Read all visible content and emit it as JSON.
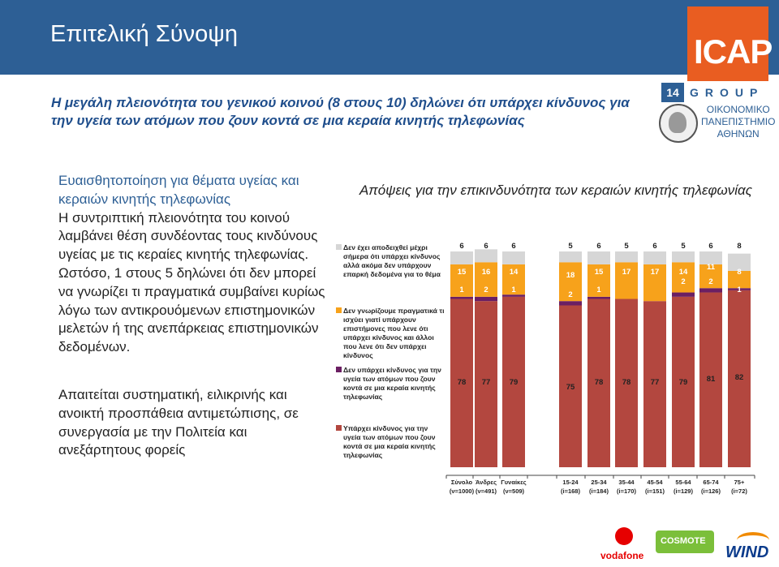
{
  "header": {
    "title": "Επιτελική Σύνοψη",
    "page_number": "14"
  },
  "logo": {
    "brand": "ICAP",
    "group": "GROUP",
    "university": [
      "ΟΙΚΟΝΟΜΙΚΟ",
      "ΠΑΝΕΠΙΣΤΗΜΙΟ",
      "ΑΘΗΝΩΝ"
    ]
  },
  "subtitle": "Η μεγάλη πλειονότητα του γενικού κοινού (8 στους 10) δηλώνει ότι υπάρχει κίνδυνος για την υγεία των ατόμων που ζουν κοντά σε μια κεραία κινητής τηλεφωνίας",
  "left_text": {
    "p1_blue": "Ευαισθητοποίηση για θέματα υγείας και κεραιών κινητής τηλεφωνίας",
    "p1_rest": "Η συντριπτική πλειονότητα του κοινού λαμβάνει θέση συνδέοντας τους κινδύνους υγείας με τις κεραίες κινητής τηλεφωνίας. Ωστόσο, 1 στους 5 δηλώνει ότι δεν μπορεί να γνωρίζει τι πραγματικά συμβαίνει κυρίως λόγω των αντικρουόμενων επιστημονικών μελετών ή της ανεπάρκειας επιστημονικών δεδομένων.",
    "p2": "Απαιτείται συστηματική, ειλικρινής και ανοικτή προσπάθεια αντιμετώπισης, σε συνεργασία με την Πολιτεία και ανεξάρτητους φορείς"
  },
  "footer": {
    "vodafone": "vodafone",
    "cosmote": "COSMOTE",
    "wind": "WIND"
  },
  "chart_data": {
    "type": "bar",
    "stacked": true,
    "title": "Απόψεις για την επικινδυνότητα των κεραιών κινητής τηλεφωνίας",
    "categories": [
      "Σύνολο\n(ν=1000)",
      "Άνδρες\n(ν=491)",
      "Γυναίκες\n(ν=509)",
      "15-24\n(ί=168)",
      "25-34\n(ί=184)",
      "35-44\n(ί=170)",
      "45-54\n(ί=151)",
      "55-64\n(ί=129)",
      "65-74\n(ί=126)",
      "75+\n(ί=72)"
    ],
    "category_lines": [
      [
        "Σύνολο",
        "(ν=1000)"
      ],
      [
        "Άνδρες",
        "(ν=491)"
      ],
      [
        "Γυναίκες",
        "(ν=509)"
      ],
      [
        "15-24",
        "(i=168)"
      ],
      [
        "25-34",
        "(i=184)"
      ],
      [
        "35-44",
        "(i=170)"
      ],
      [
        "45-54",
        "(i=151)"
      ],
      [
        "55-64",
        "(i=129)"
      ],
      [
        "65-74",
        "(i=126)"
      ],
      [
        "75+",
        "(i=72)"
      ]
    ],
    "series": [
      {
        "name": "Υπάρχει κίνδυνος για την υγεία των ατόμων που ζουν κοντά σε μια κεραία κινητής τηλεφωνίας",
        "color": "#b3473f",
        "values": [
          78,
          77,
          79,
          75,
          78,
          78,
          77,
          79,
          81,
          82
        ]
      },
      {
        "name": "Δεν υπάρχει κίνδυνος για την υγεία των ατόμων που ζουν κοντά σε μια κεραία κινητής τηλεφωνίας",
        "color": "#6b1f63",
        "values": [
          1,
          2,
          1,
          2,
          1,
          0,
          0,
          2,
          2,
          1
        ]
      },
      {
        "name": "Δεν γνωρίζουμε πραγματικά τι ισχύει γιατί υπάρχουν επιστήμονες που λενε ότι υπάρχει κίνδυνος και άλλοι που λενε ότι δεν υπάρχει κίνδυνος",
        "color": "#f7a21b",
        "values": [
          15,
          16,
          14,
          18,
          15,
          17,
          17,
          14,
          11,
          8
        ]
      },
      {
        "name": "Δεν έχει αποδειχθεί μέχρι σήμερα ότι υπάρχει κίνδυνος αλλά ακόμα δεν υπάρχουν επαρκή δεδομένα για το θέμα",
        "color": "#d6d6d6",
        "values": [
          6,
          6,
          6,
          5,
          6,
          5,
          6,
          5,
          6,
          8
        ]
      }
    ],
    "labels_shown": [
      [
        78,
        1,
        15,
        6
      ],
      [
        77,
        2,
        16,
        6
      ],
      [
        79,
        1,
        14,
        6
      ],
      [
        75,
        2,
        18,
        5
      ],
      [
        78,
        1,
        15,
        6
      ],
      [
        78,
        null,
        17,
        5
      ],
      [
        77,
        null,
        17,
        6
      ],
      [
        79,
        2,
        14,
        5
      ],
      [
        81,
        2,
        11,
        6
      ],
      [
        82,
        1,
        8,
        8
      ]
    ],
    "ylim": [
      0,
      100
    ],
    "legend_order": [
      3,
      2,
      1,
      0
    ]
  }
}
